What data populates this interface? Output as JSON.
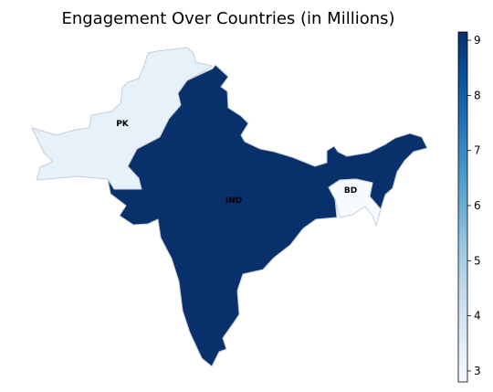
{
  "chart_data": {
    "type": "choropleth",
    "title": "Engagement Over Countries (in Millions)",
    "colormap": "Blues",
    "color_range": [
      2.8,
      9.15
    ],
    "countries": [
      {
        "code": "PK",
        "value": 3.3
      },
      {
        "code": "IND",
        "value": 9.15
      },
      {
        "code": "BD",
        "value": 2.8
      }
    ],
    "colorbar": {
      "ticks": [
        3,
        4,
        5,
        6,
        7,
        8,
        9
      ],
      "tick_labels": [
        "3",
        "4",
        "5",
        "6",
        "7",
        "8",
        "9"
      ]
    }
  }
}
